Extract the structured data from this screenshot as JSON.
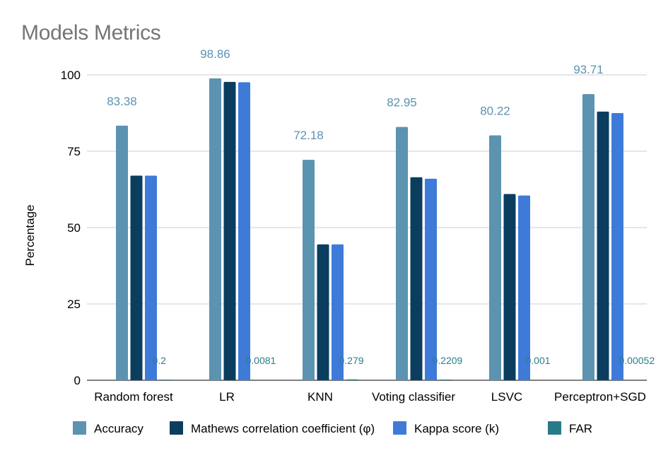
{
  "chart_data": {
    "type": "bar",
    "title": "Models Metrics",
    "xlabel": "",
    "ylabel": "Percentage",
    "ylim": [
      0,
      100
    ],
    "yticks": [
      0,
      25,
      50,
      75,
      100
    ],
    "grid": true,
    "legend_position": "bottom",
    "categories": [
      "Random forest",
      "LR",
      "KNN",
      "Voting classifier",
      "LSVC",
      "Perceptron+SGD"
    ],
    "series": [
      {
        "name": "Accuracy",
        "color": "#5b93b1",
        "values": [
          83.38,
          98.86,
          72.18,
          82.95,
          80.22,
          93.71
        ],
        "labels": [
          "83.38",
          "98.86",
          "72.18",
          "82.95",
          "80.22",
          "93.71"
        ]
      },
      {
        "name": "Mathews correlation coefficient (φ)",
        "color": "#0b3e5e",
        "values": [
          67,
          97.7,
          44.5,
          66.5,
          61,
          88
        ],
        "labels": []
      },
      {
        "name": "Kappa score (k)",
        "color": "#3e7bd8",
        "values": [
          67,
          97.6,
          44.5,
          66,
          60.5,
          87.5
        ],
        "labels": []
      },
      {
        "name": "FAR",
        "color": "#267b87",
        "values": [
          0.2,
          0.0081,
          0.279,
          0.2209,
          0.001,
          0.00052
        ],
        "labels": [
          "0.2",
          "0.0081",
          "0.279",
          "0.2209",
          "0.001",
          "0.00052"
        ]
      }
    ]
  }
}
